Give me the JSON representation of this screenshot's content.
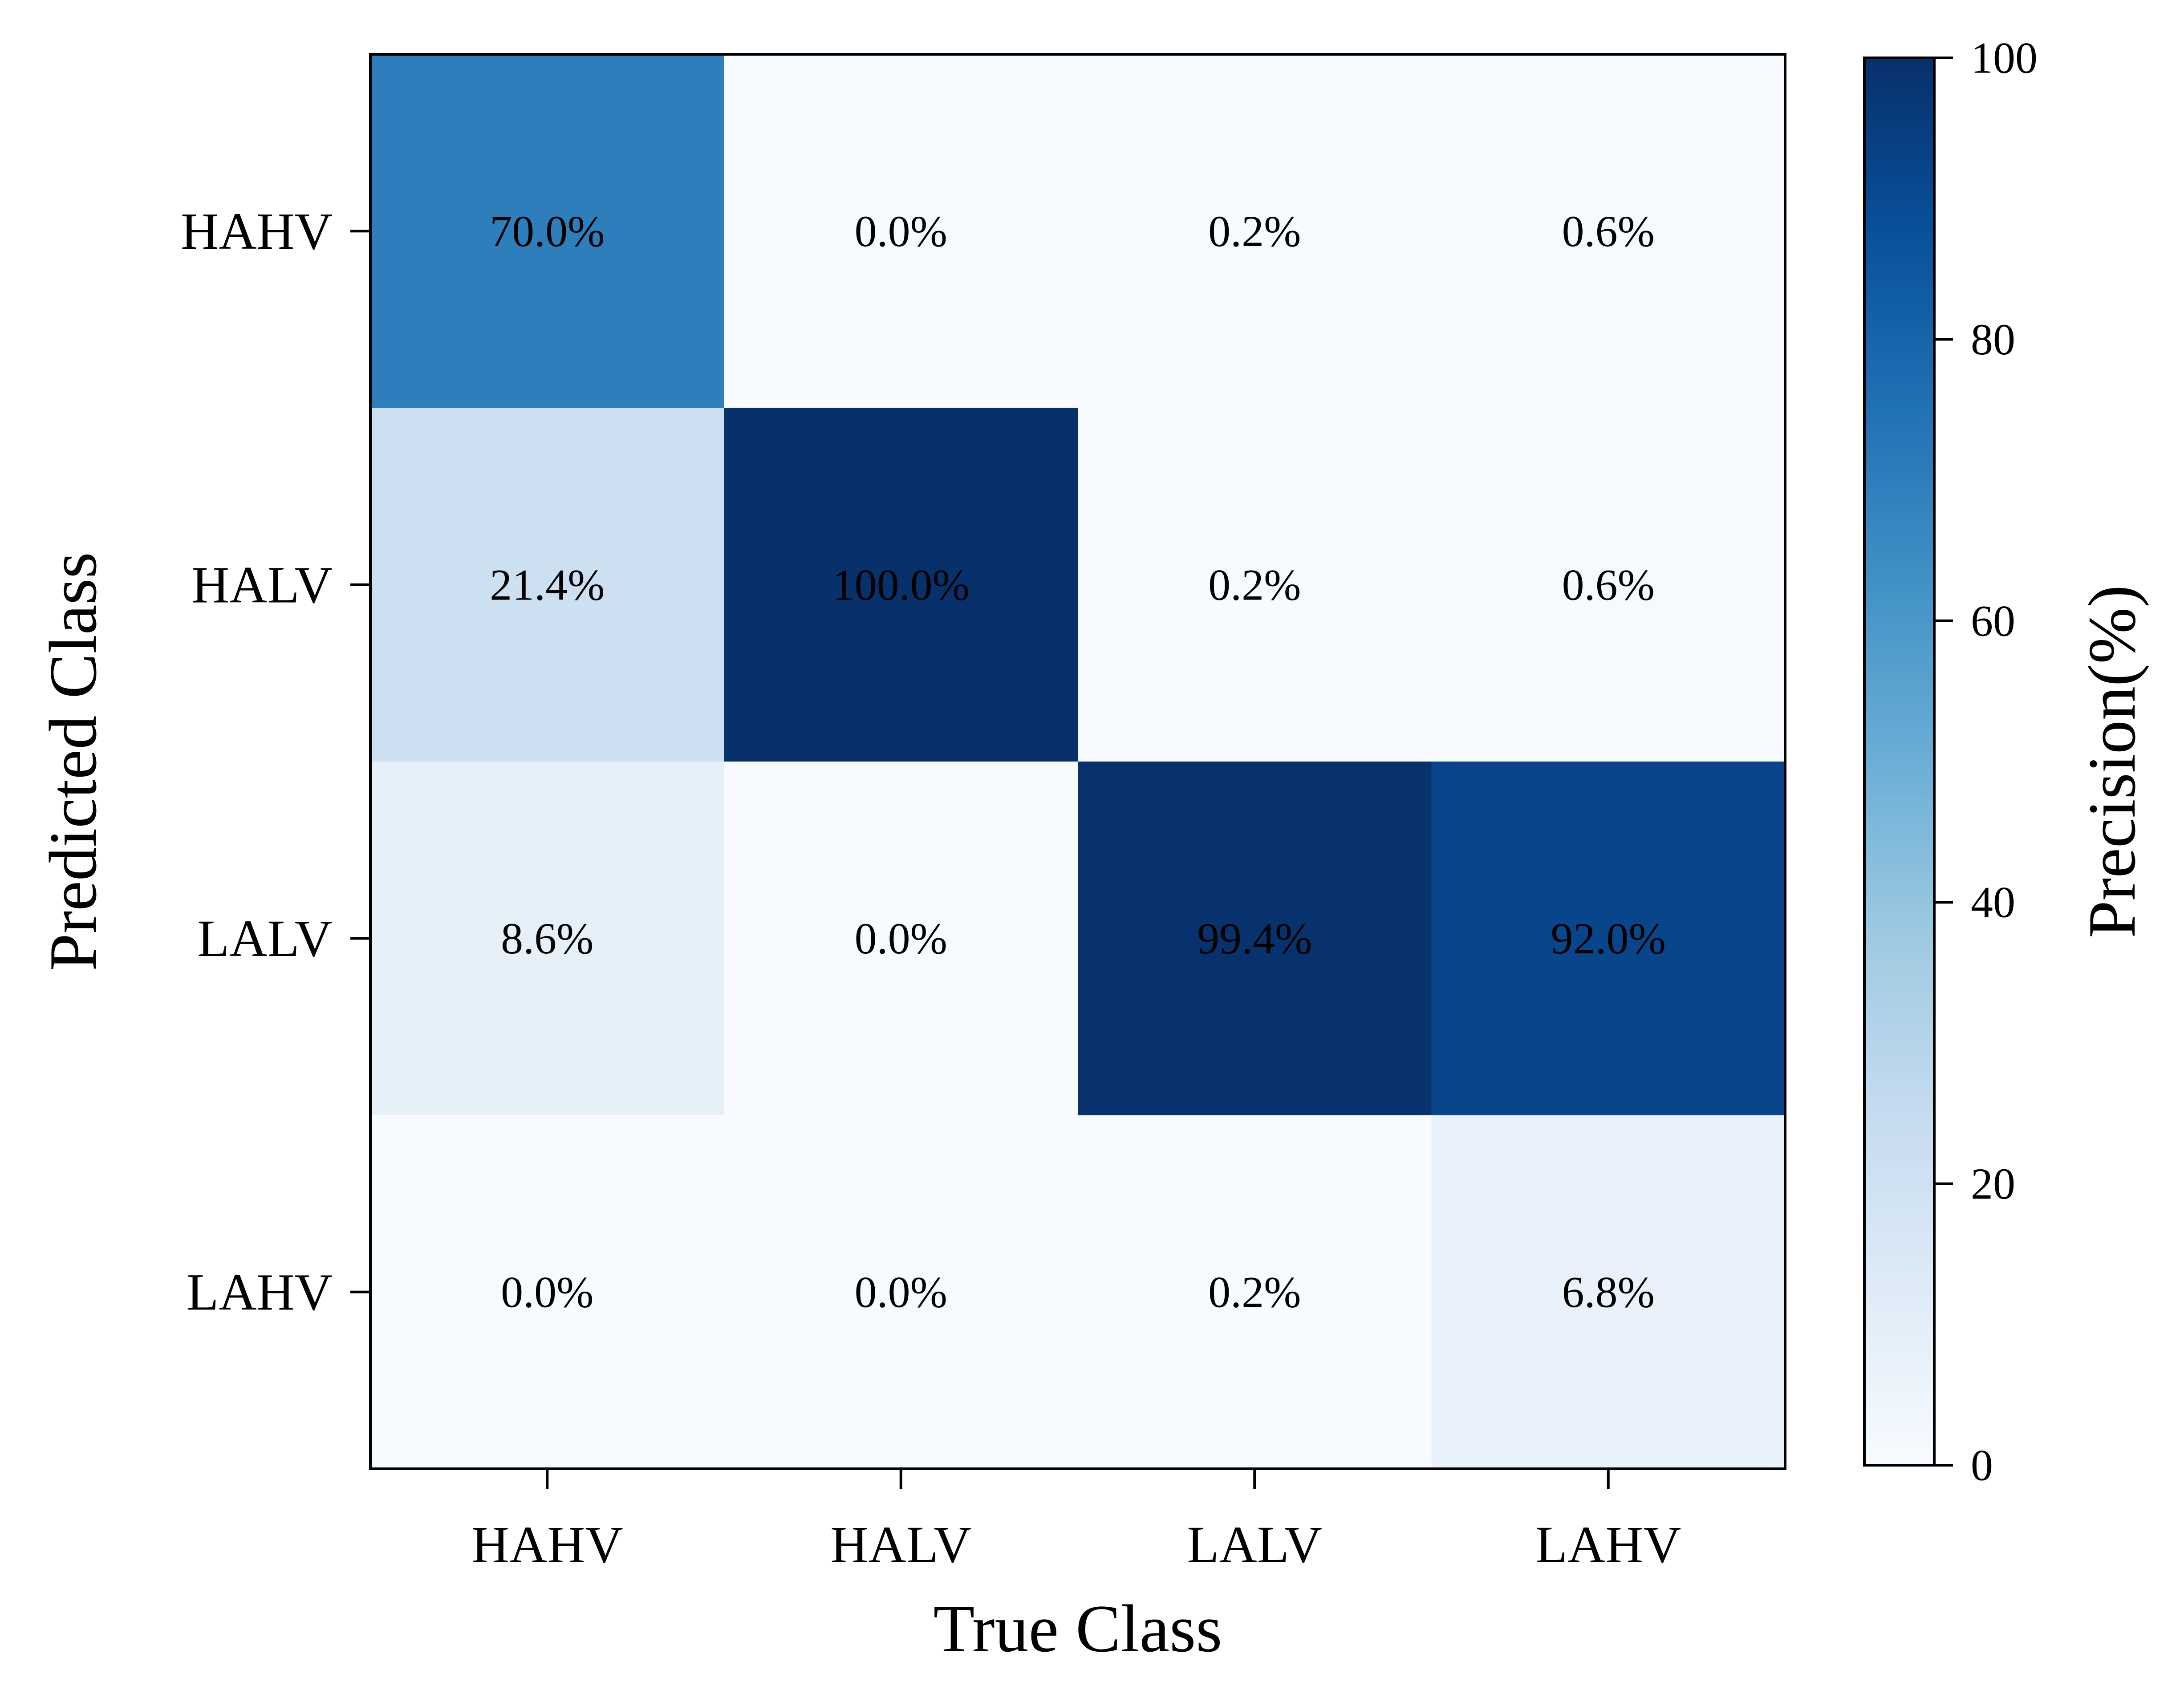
{
  "chart_data": {
    "type": "heatmap",
    "xlabel": "True Class",
    "ylabel": "Predicted Class",
    "x_categories": [
      "HAHV",
      "HALV",
      "LALV",
      "LAHV"
    ],
    "y_categories": [
      "HAHV",
      "HALV",
      "LALV",
      "LAHV"
    ],
    "values": [
      [
        70.0,
        0.0,
        0.2,
        0.6
      ],
      [
        21.4,
        100.0,
        0.2,
        0.6
      ],
      [
        8.6,
        0.0,
        99.4,
        92.0
      ],
      [
        0.0,
        0.0,
        0.2,
        6.8
      ]
    ],
    "cell_labels": [
      [
        "70.0%",
        "0.0%",
        "0.2%",
        "0.6%"
      ],
      [
        "21.4%",
        "100.0%",
        "0.2%",
        "0.6%"
      ],
      [
        "8.6%",
        "0.0%",
        "99.4%",
        "92.0%"
      ],
      [
        "0.0%",
        "0.0%",
        "0.2%",
        "6.8%"
      ]
    ],
    "colorbar": {
      "label": "Precision(%)",
      "range": [
        0,
        100
      ],
      "ticks": [
        0,
        20,
        40,
        60,
        80,
        100
      ],
      "tick_labels": [
        "0",
        "20",
        "40",
        "60",
        "80",
        "100"
      ]
    },
    "colormap": [
      "#f7fbff",
      "#deebf7",
      "#c6dbef",
      "#9ecae1",
      "#6baed6",
      "#4292c6",
      "#2171b5",
      "#08519c",
      "#08306b"
    ]
  }
}
